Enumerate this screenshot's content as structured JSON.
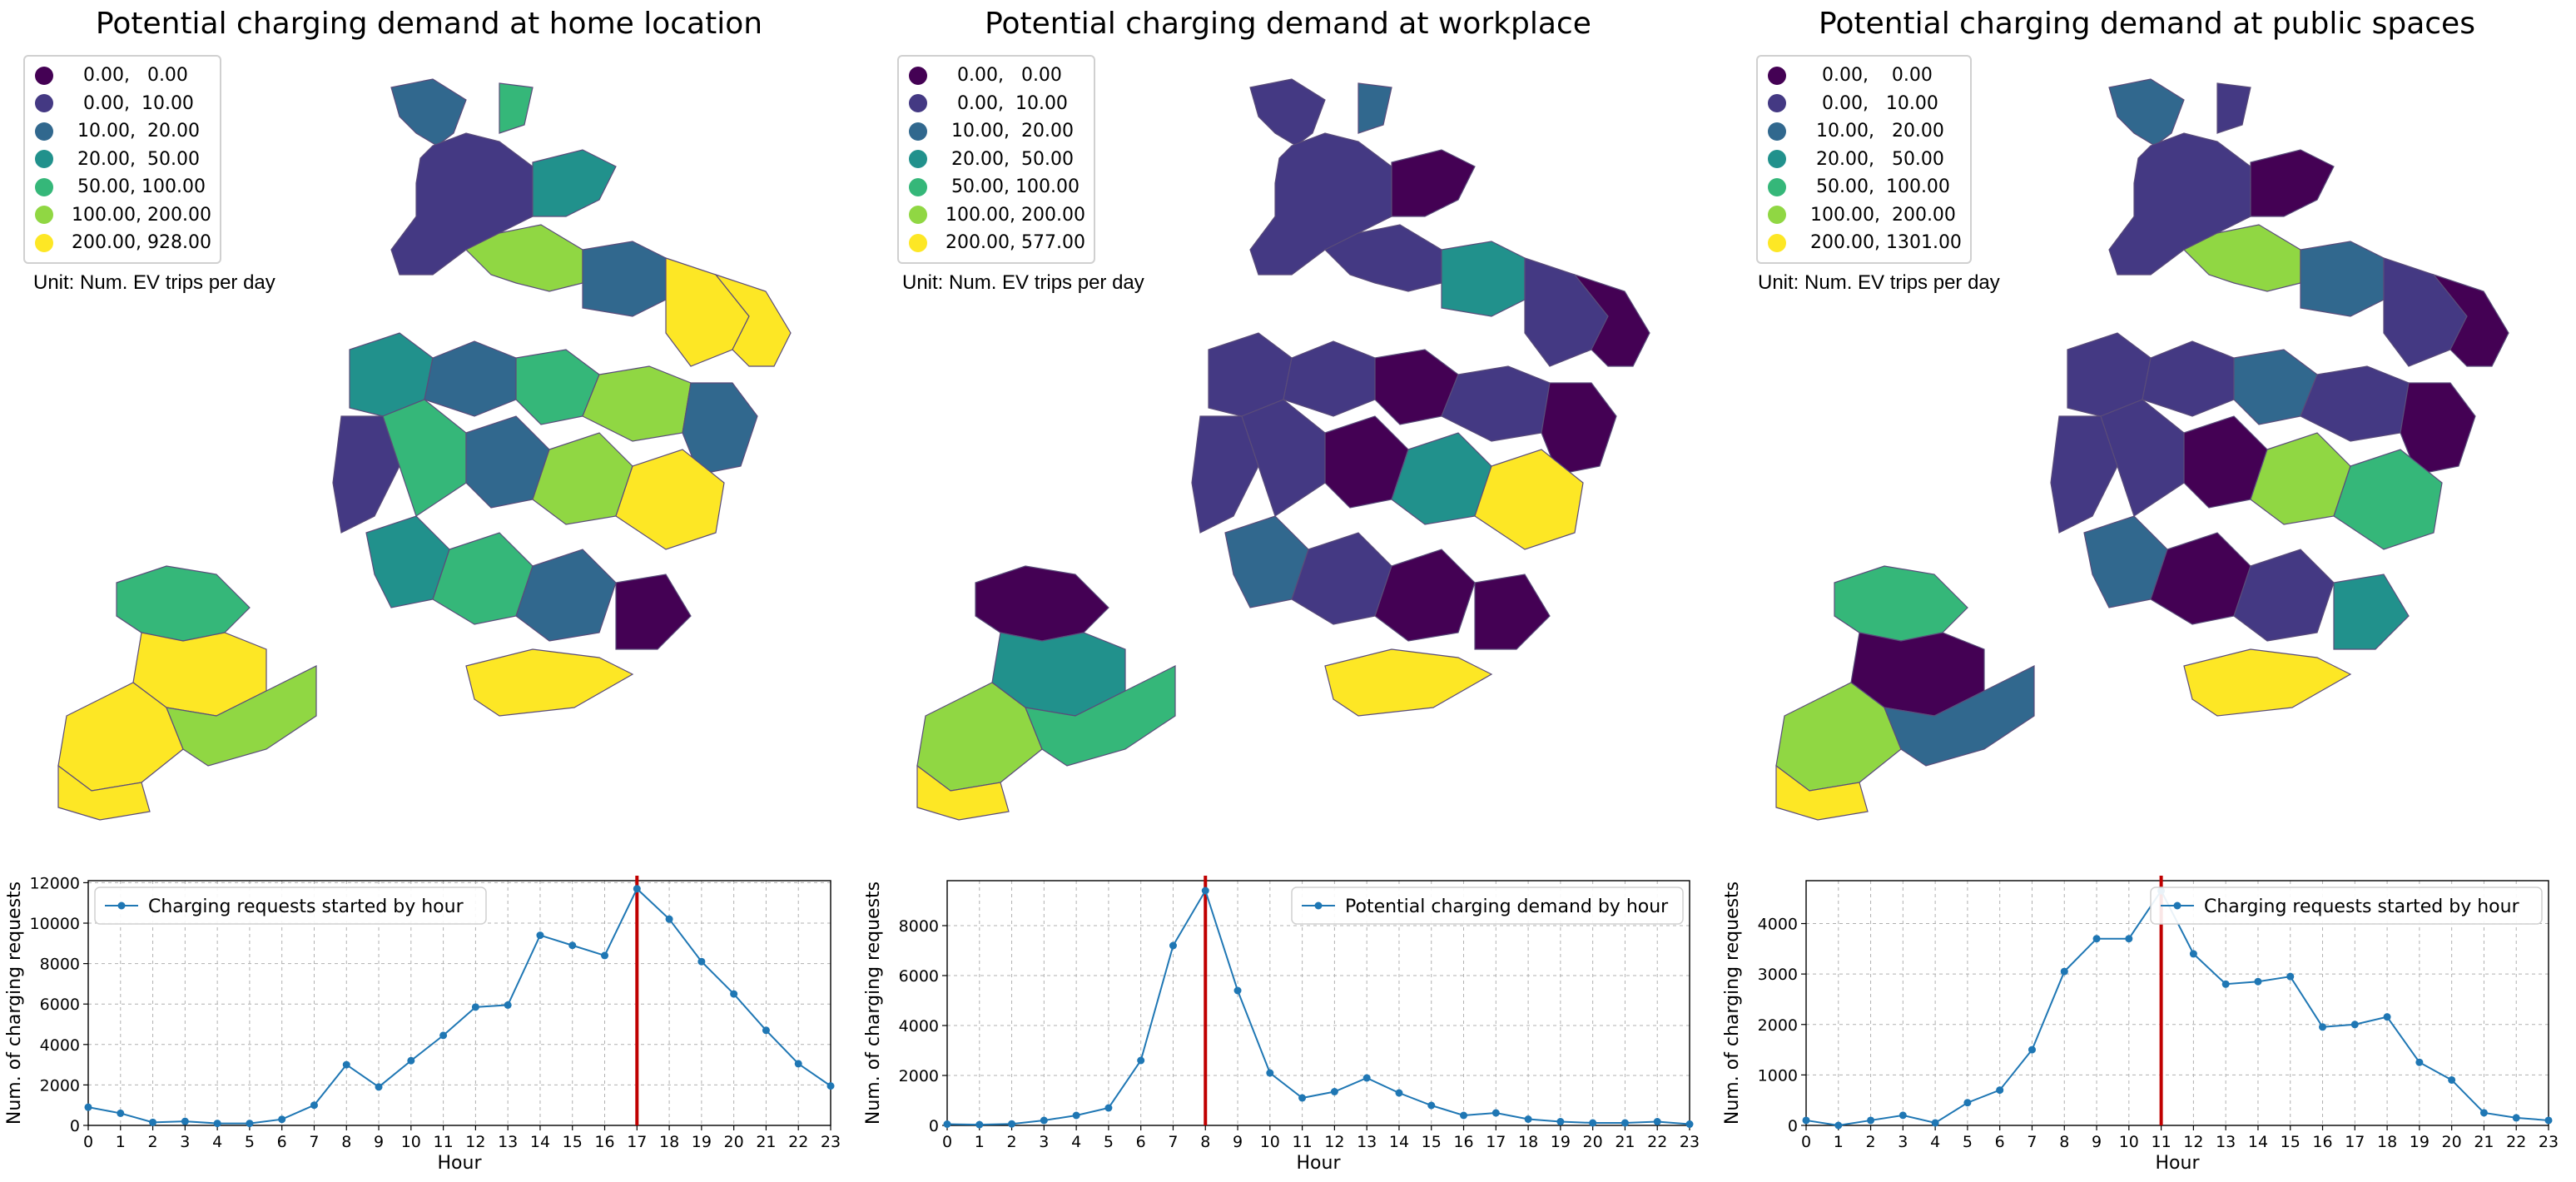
{
  "colors": {
    "line": "#1f77b4",
    "peak": "#c00000",
    "grid": "#b0b0b0",
    "palette": [
      "#440154",
      "#443983",
      "#31688e",
      "#21918c",
      "#35b779",
      "#90d743",
      "#fde725"
    ]
  },
  "unit_label": "Unit: Num. EV trips per day",
  "panels": [
    {
      "title": "Potential charging demand at home location",
      "legend": [
        "  0.00,   0.00",
        "  0.00,  10.00",
        " 10.00,  20.00",
        " 20.00,  50.00",
        " 50.00, 100.00",
        "100.00, 200.00",
        "200.00, 928.00"
      ]
    },
    {
      "title": "Potential charging demand at workplace",
      "legend": [
        "  0.00,   0.00",
        "  0.00,  10.00",
        " 10.00,  20.00",
        " 20.00,  50.00",
        " 50.00, 100.00",
        "100.00, 200.00",
        "200.00, 577.00"
      ]
    },
    {
      "title": "Potential charging demand at public spaces",
      "legend": [
        "   0.00,    0.00",
        "   0.00,   10.00",
        "  10.00,   20.00",
        "  20.00,   50.00",
        "  50.00,  100.00",
        " 100.00,  200.00",
        " 200.00, 1301.00"
      ]
    }
  ],
  "chart_data": [
    {
      "type": "line",
      "x": [
        0,
        1,
        2,
        3,
        4,
        5,
        6,
        7,
        8,
        9,
        10,
        11,
        12,
        13,
        14,
        15,
        16,
        17,
        18,
        19,
        20,
        21,
        22,
        23
      ],
      "series": [
        {
          "name": "Charging requests started by hour",
          "values": [
            900,
            600,
            150,
            200,
            100,
            100,
            300,
            1000,
            3000,
            1900,
            3200,
            4450,
            5850,
            5950,
            9400,
            8900,
            8400,
            11700,
            10200,
            8100,
            6500,
            4700,
            3050,
            1950
          ]
        }
      ],
      "xlabel": "Hour",
      "ylabel": "Num. of charging requests",
      "xlim": [
        0,
        23
      ],
      "ylim": [
        0,
        12100
      ],
      "yticks": [
        0,
        2000,
        4000,
        6000,
        8000,
        10000,
        12000
      ],
      "peak_hour": 17,
      "grid": true,
      "legend_position": "upper left"
    },
    {
      "type": "line",
      "x": [
        0,
        1,
        2,
        3,
        4,
        5,
        6,
        7,
        8,
        9,
        10,
        11,
        12,
        13,
        14,
        15,
        16,
        17,
        18,
        19,
        20,
        21,
        22,
        23
      ],
      "series": [
        {
          "name": "Potential charging demand by hour",
          "values": [
            50,
            30,
            60,
            200,
            400,
            700,
            2600,
            7200,
            9400,
            5400,
            2100,
            1100,
            1350,
            1900,
            1300,
            800,
            400,
            500,
            250,
            150,
            100,
            100,
            150,
            50
          ]
        }
      ],
      "xlabel": "Hour",
      "ylabel": "Num. of charging requests",
      "xlim": [
        0,
        23
      ],
      "ylim": [
        0,
        9800
      ],
      "yticks": [
        0,
        2000,
        4000,
        6000,
        8000
      ],
      "peak_hour": 8,
      "grid": true,
      "legend_position": "upper right"
    },
    {
      "type": "line",
      "x": [
        0,
        1,
        2,
        3,
        4,
        5,
        6,
        7,
        8,
        9,
        10,
        11,
        12,
        13,
        14,
        15,
        16,
        17,
        18,
        19,
        20,
        21,
        22,
        23
      ],
      "series": [
        {
          "name": "Charging requests started by hour",
          "values": [
            100,
            0,
            100,
            200,
            50,
            450,
            700,
            1500,
            3050,
            3700,
            3700,
            4650,
            3400,
            2800,
            2850,
            2950,
            1950,
            2000,
            2150,
            1250,
            900,
            250,
            150,
            100
          ]
        }
      ],
      "xlabel": "Hour",
      "ylabel": "Num. of charging requests",
      "xlim": [
        0,
        23
      ],
      "ylim": [
        0,
        4850
      ],
      "yticks": [
        0,
        1000,
        2000,
        3000,
        4000
      ],
      "peak_hour": 11,
      "grid": true,
      "legend_position": "upper right"
    }
  ]
}
